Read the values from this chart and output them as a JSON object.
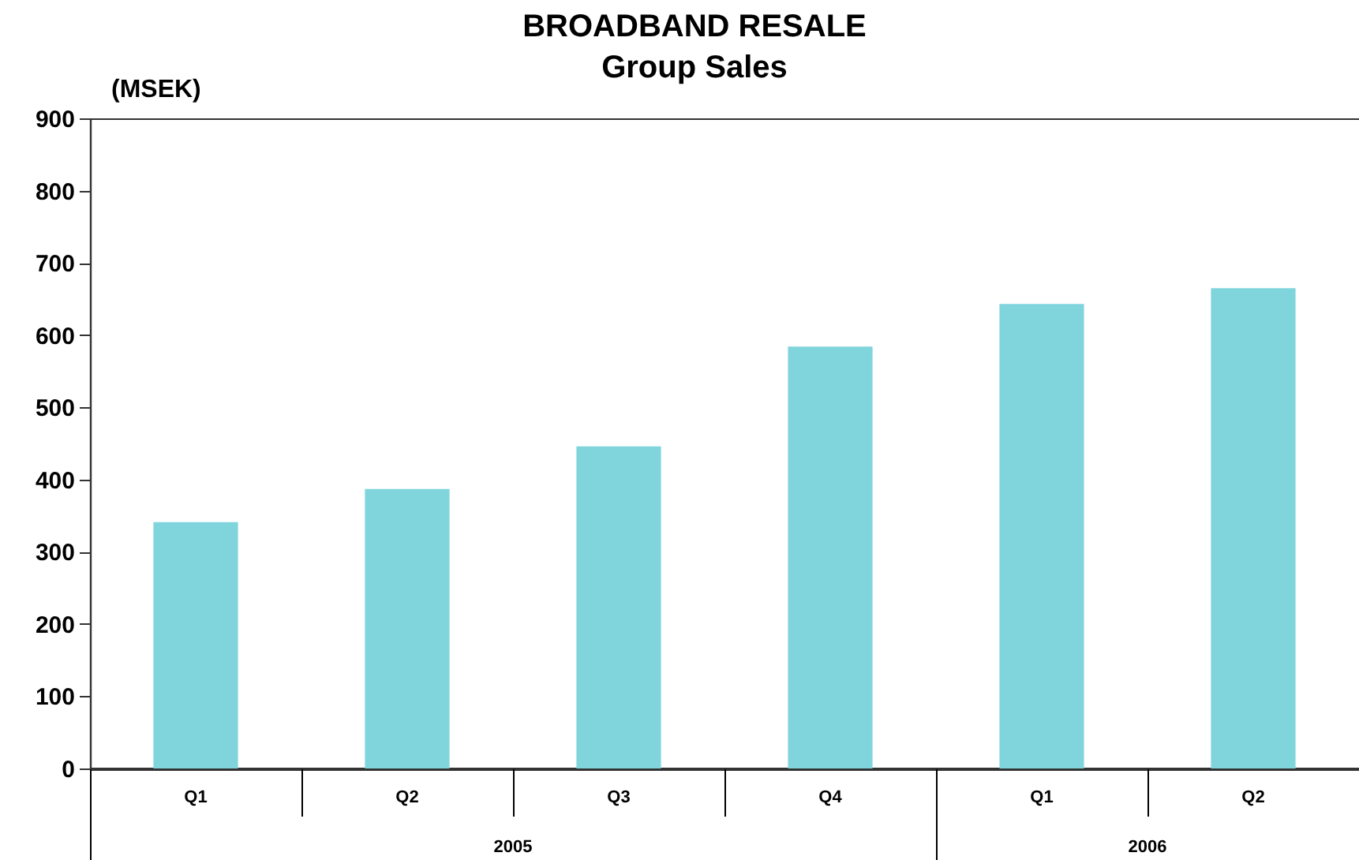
{
  "chart_data": {
    "type": "bar",
    "title": "BROADBAND RESALE",
    "subtitle": "Group Sales",
    "ylabel": "(MSEK)",
    "categories": [
      "Q1",
      "Q2",
      "Q3",
      "Q4",
      "Q1",
      "Q2"
    ],
    "values": [
      341,
      387,
      446,
      584,
      643,
      665
    ],
    "color": "#80d5dc",
    "ylim": [
      0,
      900
    ],
    "yticks": [
      0,
      100,
      200,
      300,
      400,
      500,
      600,
      700,
      800,
      900
    ],
    "annotations": [
      "2005",
      "2006"
    ]
  }
}
